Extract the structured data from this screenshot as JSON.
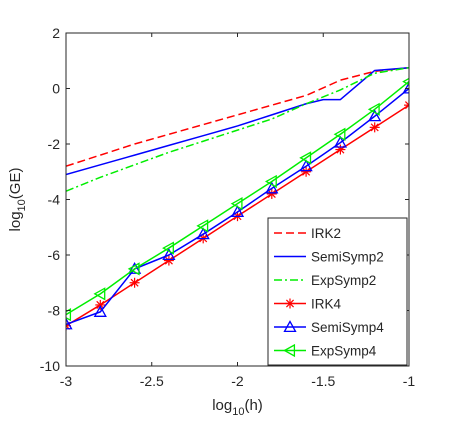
{
  "chart_data": {
    "type": "line",
    "xlabel_main": "log",
    "xlabel_sub": "10",
    "xlabel_arg": "(h)",
    "ylabel_main": "log",
    "ylabel_sub": "10",
    "ylabel_arg": "(GE)",
    "xlim": [
      -3,
      -1
    ],
    "ylim": [
      -10,
      2
    ],
    "xticks": [
      -3,
      -2.5,
      -2,
      -1.5,
      -1
    ],
    "xtick_labels": [
      "-3",
      "-2.5",
      "-2",
      "-1.5",
      "-1"
    ],
    "yticks": [
      -10,
      -8,
      -6,
      -4,
      -2,
      0,
      2
    ],
    "ytick_labels": [
      "-10",
      "-8",
      "-6",
      "-4",
      "-2",
      "0",
      "2"
    ],
    "grid": false,
    "legend_position": "bottom-right",
    "series": [
      {
        "name": "IRK2",
        "color": "#ff0000",
        "dash": "dashed",
        "marker": "none",
        "x": [
          -3,
          -2.8,
          -2.6,
          -2.4,
          -2.2,
          -2,
          -1.8,
          -1.6,
          -1.4,
          -1.2,
          -1
        ],
        "y": [
          -2.8,
          -2.4,
          -2.0,
          -1.65,
          -1.3,
          -0.95,
          -0.6,
          -0.25,
          0.3,
          0.62,
          0.75
        ]
      },
      {
        "name": "SemiSymp2",
        "color": "#0000ff",
        "dash": "solid",
        "marker": "none",
        "x": [
          -3,
          -2.8,
          -2.6,
          -2.4,
          -2.2,
          -2,
          -1.8,
          -1.6,
          -1.5,
          -1.4,
          -1.2,
          -1
        ],
        "y": [
          -3.1,
          -2.75,
          -2.4,
          -2.05,
          -1.7,
          -1.35,
          -0.95,
          -0.55,
          -0.4,
          -0.4,
          0.65,
          0.75
        ]
      },
      {
        "name": "ExpSymp2",
        "color": "#00ee00",
        "dash": "dashdot",
        "marker": "none",
        "x": [
          -3,
          -2.8,
          -2.6,
          -2.4,
          -2.2,
          -2,
          -1.8,
          -1.6,
          -1.4,
          -1.2,
          -1
        ],
        "y": [
          -3.7,
          -3.2,
          -2.75,
          -2.3,
          -1.9,
          -1.5,
          -1.1,
          -0.55,
          -0.05,
          0.55,
          0.75
        ]
      },
      {
        "name": "IRK4",
        "color": "#ff0000",
        "dash": "solid",
        "marker": "asterisk",
        "x": [
          -3,
          -2.8,
          -2.6,
          -2.4,
          -2.2,
          -2,
          -1.8,
          -1.6,
          -1.4,
          -1.2,
          -1
        ],
        "y": [
          -8.55,
          -7.8,
          -7.0,
          -6.2,
          -5.4,
          -4.6,
          -3.8,
          -3.0,
          -2.2,
          -1.4,
          -0.6
        ]
      },
      {
        "name": "SemiSymp4",
        "color": "#0000ff",
        "dash": "solid",
        "marker": "triangle-up",
        "x": [
          -3,
          -2.8,
          -2.6,
          -2.4,
          -2.2,
          -2,
          -1.8,
          -1.6,
          -1.4,
          -1.2,
          -1
        ],
        "y": [
          -8.5,
          -8.05,
          -6.5,
          -6.0,
          -5.25,
          -4.45,
          -3.6,
          -2.8,
          -1.95,
          -1.0,
          0.0
        ]
      },
      {
        "name": "ExpSymp4",
        "color": "#00ee00",
        "dash": "solid",
        "marker": "triangle-left",
        "x": [
          -3,
          -2.8,
          -2.6,
          -2.4,
          -2.2,
          -2,
          -1.8,
          -1.6,
          -1.4,
          -1.2,
          -1
        ],
        "y": [
          -8.15,
          -7.4,
          -6.5,
          -5.75,
          -4.95,
          -4.15,
          -3.35,
          -2.5,
          -1.65,
          -0.75,
          0.25
        ]
      }
    ]
  }
}
